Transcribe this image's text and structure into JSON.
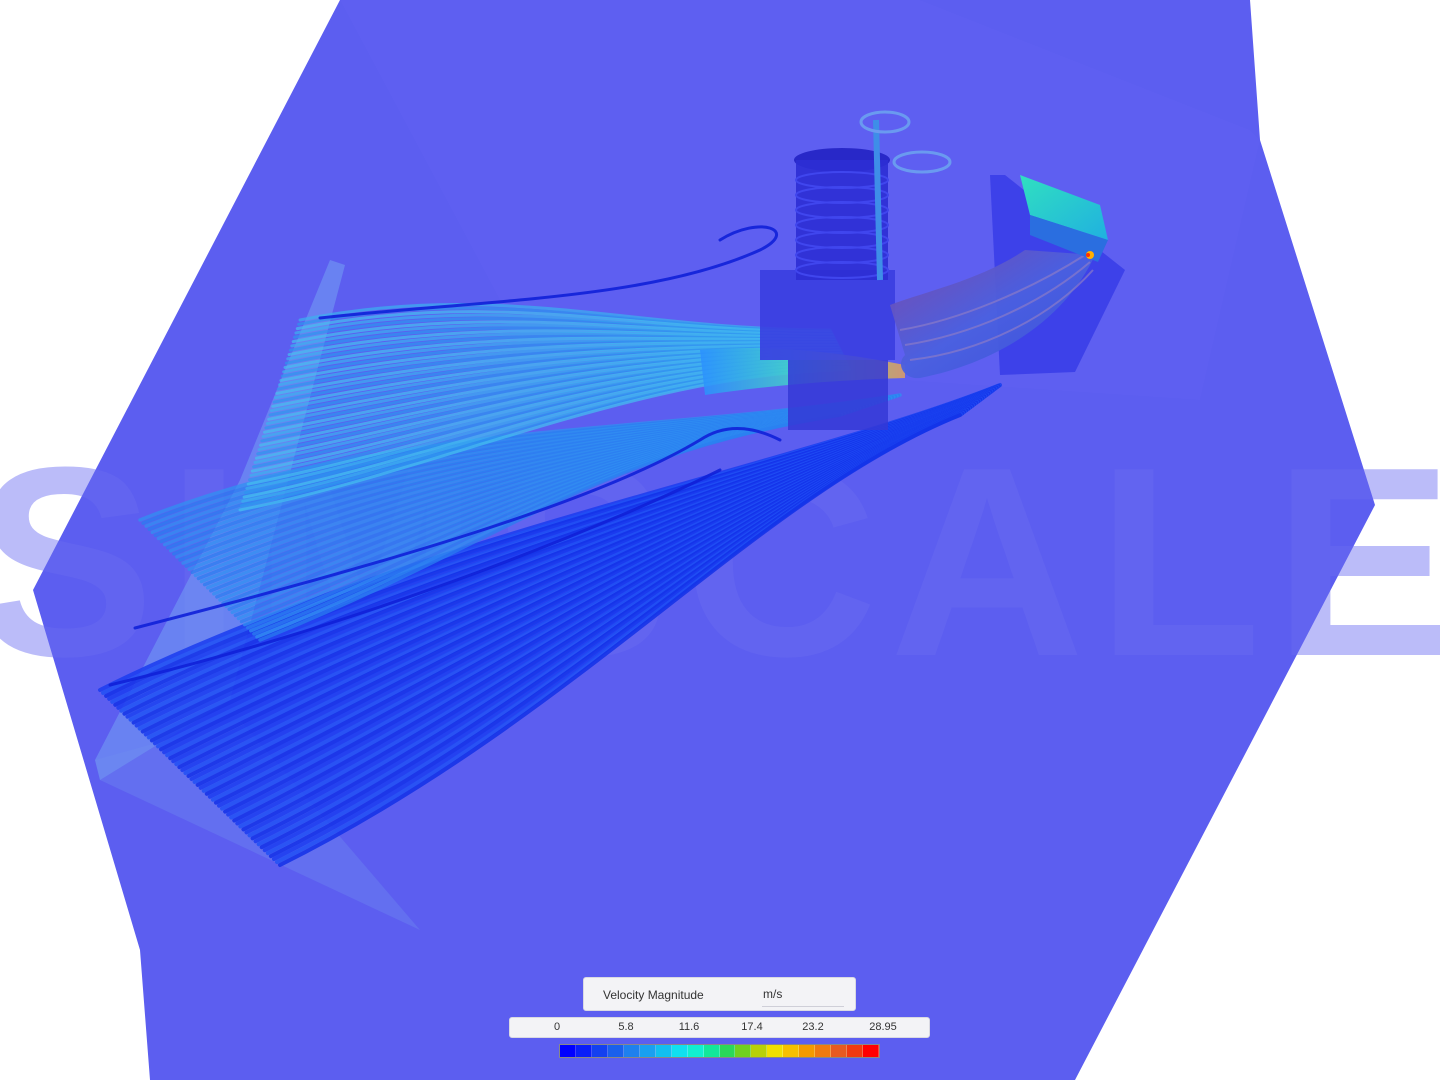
{
  "legend": {
    "quantity": "Velocity Magnitude",
    "unit": "m/s",
    "ticks": [
      "0",
      "5.8",
      "11.6",
      "17.4",
      "23.2",
      "28.95"
    ],
    "min": 0,
    "max": 28.95,
    "colormap": [
      "#0000ff",
      "#0a1ef8",
      "#1340f0",
      "#1a60ec",
      "#1e80ee",
      "#19a0f0",
      "#12bff0",
      "#10dff0",
      "#10efd0",
      "#12e89a",
      "#2ad85a",
      "#70d020",
      "#b8d008",
      "#f0e000",
      "#f6c000",
      "#f49a00",
      "#ef7a10",
      "#e85a20",
      "#f03a10",
      "#ff0000"
    ]
  },
  "scene": {
    "background": "#5c5ef0",
    "watermark": "SIMSCALE"
  }
}
